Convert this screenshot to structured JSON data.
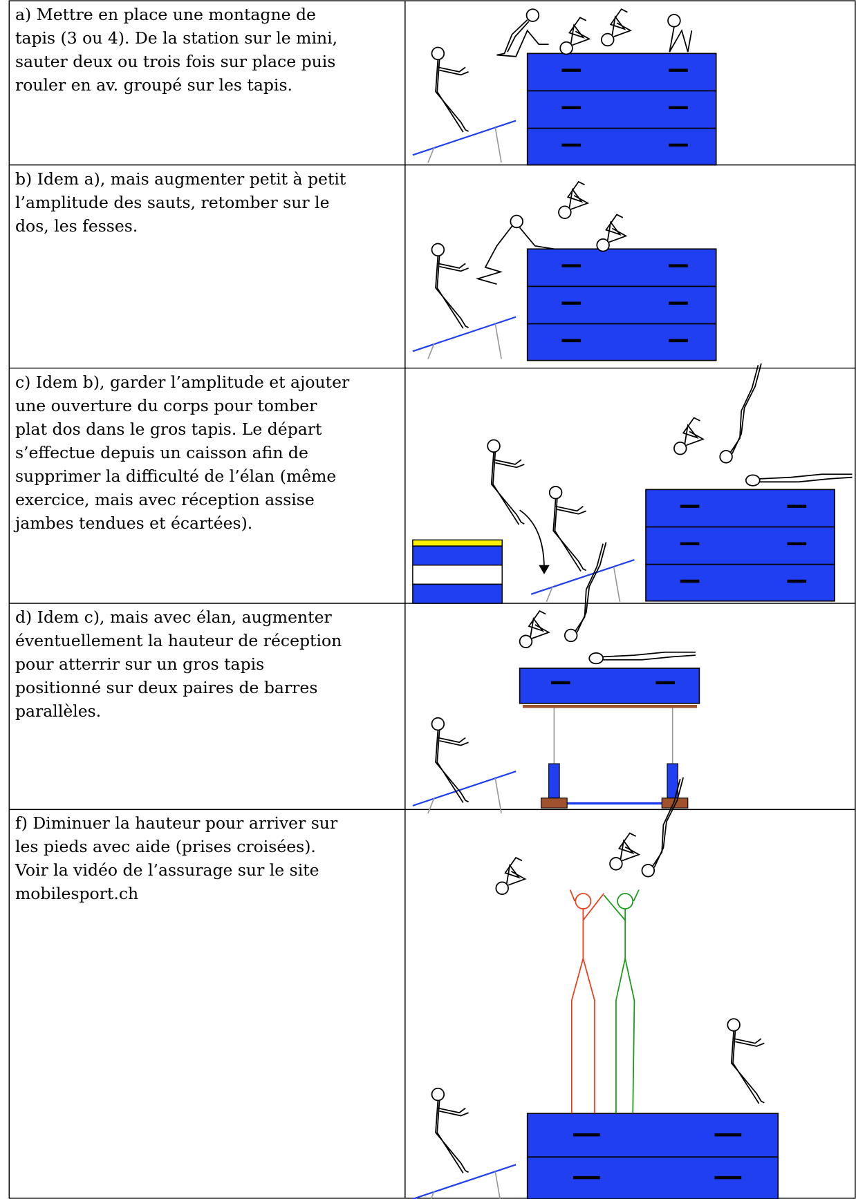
{
  "table": {
    "rows": [
      {
        "lines": [
          "a) Mettre en place une montagne de",
          "tapis (3 ou 4). De la station sur le mini,",
          "sauter deux ou trois fois sur place puis",
          "rouler en av. groupé sur les tapis."
        ]
      },
      {
        "lines": [
          "b) Idem a), mais augmenter petit à petit",
          "l’amplitude des sauts, retomber sur le",
          "dos, les fesses."
        ]
      },
      {
        "lines": [
          "c) Idem b), garder l’amplitude et ajouter",
          "une ouverture du corps pour tomber",
          "plat dos dans le gros tapis. Le départ",
          "s’effectue depuis un caisson afin de",
          "supprimer la difficulté de l’élan (même",
          "exercice, mais avec réception assise",
          "jambes tendues et écartées)."
        ]
      },
      {
        "lines": [
          "d) Idem c), mais avec élan, augmenter",
          "éventuellement la hauteur de réception",
          "pour atterrir sur un gros tapis",
          "positionné sur deux paires de barres",
          "parallèles."
        ]
      },
      {
        "lines": [
          "f) Diminuer la hauteur pour arriver sur",
          "les pieds avec aide (prises croisées).",
          "Voir la vidéo de l’assurage sur le site",
          "mobilesport.ch"
        ]
      }
    ]
  }
}
